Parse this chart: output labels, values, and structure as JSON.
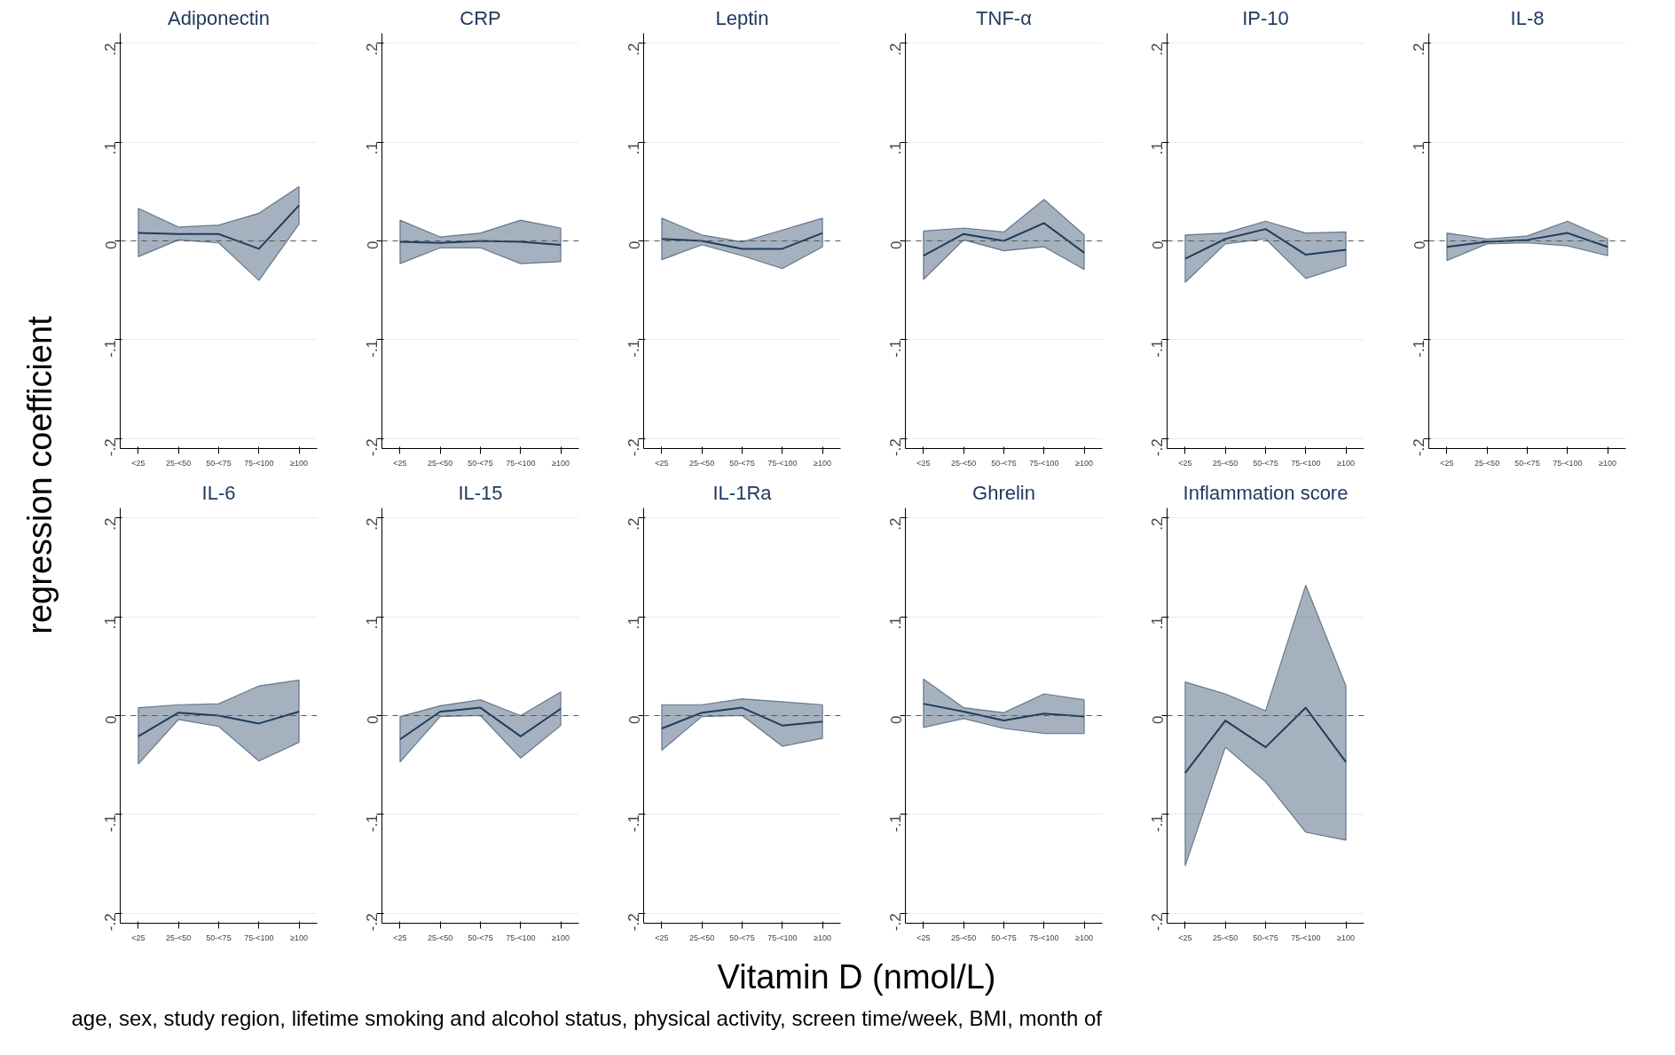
{
  "chart_data": [
    {
      "type": "line",
      "title": "Adiponectin",
      "ylabel": "regression coefficient",
      "categories": [
        "<25",
        "25-<50",
        "50-<75",
        "75-<100",
        "≥100"
      ],
      "ylim": [
        -0.21,
        0.21
      ],
      "yticks": [
        {
          "value": -0.2,
          "label": "-.2"
        },
        {
          "value": -0.1,
          "label": "-.1"
        },
        0,
        {
          "value": 0.1,
          "label": ".1"
        },
        {
          "value": 0.2,
          "label": ".2"
        }
      ],
      "grid": "y",
      "ref_lines": [
        {
          "axis": "y",
          "value": 0,
          "line_style": "dashed",
          "color": "#555555"
        }
      ],
      "series": [
        {
          "color": "#1f3d5c",
          "values": [
            0.008,
            0.007,
            0.007,
            -0.008,
            0.036
          ],
          "lower": [
            -0.016,
            0.001,
            -0.002,
            -0.04,
            0.017
          ],
          "upper": [
            0.033,
            0.014,
            0.016,
            0.028,
            0.055
          ]
        }
      ]
    },
    {
      "type": "line",
      "title": "CRP",
      "categories": [
        "<25",
        "25-<50",
        "50-<75",
        "75-<100",
        "≥100"
      ],
      "ylim": [
        -0.21,
        0.21
      ],
      "yticks": [
        {
          "value": -0.2,
          "label": "-.2"
        },
        {
          "value": -0.1,
          "label": "-.1"
        },
        0,
        {
          "value": 0.1,
          "label": ".1"
        },
        {
          "value": 0.2,
          "label": ".2"
        }
      ],
      "grid": "y",
      "ref_lines": [
        {
          "axis": "y",
          "value": 0,
          "line_style": "dashed",
          "color": "#555555"
        }
      ],
      "series": [
        {
          "color": "#1f3d5c",
          "values": [
            -0.001,
            -0.002,
            0.0,
            -0.001,
            -0.004
          ],
          "lower": [
            -0.023,
            -0.007,
            -0.007,
            -0.023,
            -0.021
          ],
          "upper": [
            0.021,
            0.004,
            0.008,
            0.021,
            0.013
          ]
        }
      ]
    },
    {
      "type": "line",
      "title": "Leptin",
      "categories": [
        "<25",
        "25-<50",
        "50-<75",
        "75-<100",
        "≥100"
      ],
      "ylim": [
        -0.21,
        0.21
      ],
      "yticks": [
        {
          "value": -0.2,
          "label": "-.2"
        },
        {
          "value": -0.1,
          "label": "-.1"
        },
        0,
        {
          "value": 0.1,
          "label": ".1"
        },
        {
          "value": 0.2,
          "label": ".2"
        }
      ],
      "grid": "y",
      "ref_lines": [
        {
          "axis": "y",
          "value": 0,
          "line_style": "dashed",
          "color": "#555555"
        }
      ],
      "series": [
        {
          "color": "#1f3d5c",
          "values": [
            0.002,
            0.0,
            -0.008,
            -0.008,
            0.008
          ],
          "lower": [
            -0.019,
            -0.004,
            -0.015,
            -0.028,
            -0.006
          ],
          "upper": [
            0.023,
            0.006,
            -0.001,
            0.011,
            0.023
          ]
        }
      ]
    },
    {
      "type": "line",
      "title": "TNF-α",
      "categories": [
        "<25",
        "25-<50",
        "50-<75",
        "75-<100",
        "≥100"
      ],
      "ylim": [
        -0.21,
        0.21
      ],
      "yticks": [
        {
          "value": -0.2,
          "label": "-.2"
        },
        {
          "value": -0.1,
          "label": "-.1"
        },
        0,
        {
          "value": 0.1,
          "label": ".1"
        },
        {
          "value": 0.2,
          "label": ".2"
        }
      ],
      "grid": "y",
      "ref_lines": [
        {
          "axis": "y",
          "value": 0,
          "line_style": "dashed",
          "color": "#555555"
        }
      ],
      "series": [
        {
          "color": "#1f3d5c",
          "values": [
            -0.015,
            0.007,
            0.0,
            0.018,
            -0.012
          ],
          "lower": [
            -0.039,
            0.001,
            -0.01,
            -0.006,
            -0.029
          ],
          "upper": [
            0.01,
            0.013,
            0.009,
            0.042,
            0.006
          ]
        }
      ]
    },
    {
      "type": "line",
      "title": "IP-10",
      "categories": [
        "<25",
        "25-<50",
        "50-<75",
        "75-<100",
        "≥100"
      ],
      "ylim": [
        -0.21,
        0.21
      ],
      "yticks": [
        {
          "value": -0.2,
          "label": "-.2"
        },
        {
          "value": -0.1,
          "label": "-.1"
        },
        0,
        {
          "value": 0.1,
          "label": ".1"
        },
        {
          "value": 0.2,
          "label": ".2"
        }
      ],
      "grid": "y",
      "ref_lines": [
        {
          "axis": "y",
          "value": 0,
          "line_style": "dashed",
          "color": "#555555"
        }
      ],
      "series": [
        {
          "color": "#1f3d5c",
          "values": [
            -0.018,
            0.002,
            0.012,
            -0.014,
            -0.009
          ],
          "lower": [
            -0.042,
            -0.003,
            0.002,
            -0.038,
            -0.025
          ],
          "upper": [
            0.006,
            0.008,
            0.02,
            0.008,
            0.009
          ]
        }
      ]
    },
    {
      "type": "line",
      "title": "IL-8",
      "categories": [
        "<25",
        "25-<50",
        "50-<75",
        "75-<100",
        "≥100"
      ],
      "ylim": [
        -0.21,
        0.21
      ],
      "yticks": [
        {
          "value": -0.2,
          "label": "-.2"
        },
        {
          "value": -0.1,
          "label": "-.1"
        },
        0,
        {
          "value": 0.1,
          "label": ".1"
        },
        {
          "value": 0.2,
          "label": ".2"
        }
      ],
      "grid": "y",
      "ref_lines": [
        {
          "axis": "y",
          "value": 0,
          "line_style": "dashed",
          "color": "#555555"
        }
      ],
      "series": [
        {
          "color": "#1f3d5c",
          "values": [
            -0.006,
            -0.001,
            0.001,
            0.008,
            -0.006
          ],
          "lower": [
            -0.02,
            -0.003,
            -0.002,
            -0.005,
            -0.015
          ],
          "upper": [
            0.008,
            0.002,
            0.005,
            0.02,
            0.002
          ]
        }
      ]
    },
    {
      "type": "line",
      "title": "IL-6",
      "annotations": [
        "age, sex, study region, lifetime smoking and alcohol status, physical activity, screen time/week, BMI, month of"
      ],
      "categories": [
        "<25",
        "25-<50",
        "50-<75",
        "75-<100",
        "≥100"
      ],
      "ylim": [
        -0.21,
        0.21
      ],
      "yticks": [
        {
          "value": -0.2,
          "label": "-.2"
        },
        {
          "value": -0.1,
          "label": "-.1"
        },
        0,
        {
          "value": 0.1,
          "label": ".1"
        },
        {
          "value": 0.2,
          "label": ".2"
        }
      ],
      "grid": "y",
      "ref_lines": [
        {
          "axis": "y",
          "value": 0,
          "line_style": "dashed",
          "color": "#555555"
        }
      ],
      "series": [
        {
          "color": "#1f3d5c",
          "values": [
            -0.021,
            0.003,
            0.0,
            -0.008,
            0.004
          ],
          "lower": [
            -0.049,
            -0.004,
            -0.011,
            -0.046,
            -0.027
          ],
          "upper": [
            0.008,
            0.011,
            0.012,
            0.03,
            0.036
          ]
        }
      ]
    },
    {
      "type": "line",
      "title": "IL-15",
      "categories": [
        "<25",
        "25-<50",
        "50-<75",
        "75-<100",
        "≥100"
      ],
      "ylim": [
        -0.21,
        0.21
      ],
      "yticks": [
        {
          "value": -0.2,
          "label": "-.2"
        },
        {
          "value": -0.1,
          "label": "-.1"
        },
        0,
        {
          "value": 0.1,
          "label": ".1"
        },
        {
          "value": 0.2,
          "label": ".2"
        }
      ],
      "grid": "y",
      "ref_lines": [
        {
          "axis": "y",
          "value": 0,
          "line_style": "dashed",
          "color": "#555555"
        }
      ],
      "series": [
        {
          "color": "#1f3d5c",
          "values": [
            -0.024,
            0.004,
            0.008,
            -0.021,
            0.007
          ],
          "lower": [
            -0.047,
            -0.001,
            0.0,
            -0.043,
            -0.01
          ],
          "upper": [
            -0.001,
            0.01,
            0.016,
            0.0,
            0.024
          ]
        }
      ]
    },
    {
      "type": "line",
      "title": "IL-1Ra",
      "xlabel": "Vitamin D (nmol/L)",
      "categories": [
        "<25",
        "25-<50",
        "50-<75",
        "75-<100",
        "≥100"
      ],
      "ylim": [
        -0.21,
        0.21
      ],
      "yticks": [
        {
          "value": -0.2,
          "label": "-.2"
        },
        {
          "value": -0.1,
          "label": "-.1"
        },
        0,
        {
          "value": 0.1,
          "label": ".1"
        },
        {
          "value": 0.2,
          "label": ".2"
        }
      ],
      "grid": "y",
      "ref_lines": [
        {
          "axis": "y",
          "value": 0,
          "line_style": "dashed",
          "color": "#555555"
        }
      ],
      "series": [
        {
          "color": "#1f3d5c",
          "values": [
            -0.013,
            0.003,
            0.008,
            -0.01,
            -0.006
          ],
          "lower": [
            -0.035,
            -0.001,
            0.0,
            -0.031,
            -0.023
          ],
          "upper": [
            0.011,
            0.011,
            0.017,
            0.014,
            0.011
          ]
        }
      ]
    },
    {
      "type": "line",
      "title": "Ghrelin",
      "categories": [
        "<25",
        "25-<50",
        "50-<75",
        "75-<100",
        "≥100"
      ],
      "ylim": [
        -0.21,
        0.21
      ],
      "yticks": [
        {
          "value": -0.2,
          "label": "-.2"
        },
        {
          "value": -0.1,
          "label": "-.1"
        },
        0,
        {
          "value": 0.1,
          "label": ".1"
        },
        {
          "value": 0.2,
          "label": ".2"
        }
      ],
      "grid": "y",
      "ref_lines": [
        {
          "axis": "y",
          "value": 0,
          "line_style": "dashed",
          "color": "#555555"
        }
      ],
      "series": [
        {
          "color": "#1f3d5c",
          "values": [
            0.012,
            0.004,
            -0.005,
            0.002,
            -0.001
          ],
          "lower": [
            -0.012,
            -0.003,
            -0.013,
            -0.018,
            -0.018
          ],
          "upper": [
            0.037,
            0.008,
            0.003,
            0.022,
            0.016
          ]
        }
      ]
    },
    {
      "type": "line",
      "title": "Inflammation score",
      "categories": [
        "<25",
        "25-<50",
        "50-<75",
        "75-<100",
        "≥100"
      ],
      "ylim": [
        -0.21,
        0.21
      ],
      "yticks": [
        {
          "value": -0.2,
          "label": "-.2"
        },
        {
          "value": -0.1,
          "label": "-.1"
        },
        0,
        {
          "value": 0.1,
          "label": ".1"
        },
        {
          "value": 0.2,
          "label": ".2"
        }
      ],
      "grid": "y",
      "ref_lines": [
        {
          "axis": "y",
          "value": 0,
          "line_style": "dashed",
          "color": "#555555"
        }
      ],
      "series": [
        {
          "color": "#1f3d5c",
          "values": [
            -0.058,
            -0.005,
            -0.032,
            0.008,
            -0.047
          ],
          "lower": [
            -0.152,
            -0.032,
            -0.067,
            -0.118,
            -0.126
          ],
          "upper": [
            0.034,
            0.022,
            0.005,
            0.132,
            0.03
          ]
        }
      ]
    }
  ]
}
